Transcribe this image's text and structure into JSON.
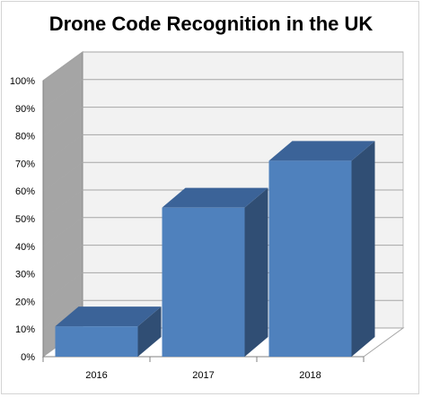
{
  "chart_data": {
    "type": "bar",
    "title": "Drone Code Recognition in the UK",
    "categories": [
      "2016",
      "2017",
      "2018"
    ],
    "values": [
      11,
      54,
      71
    ],
    "ylim": [
      0,
      100
    ],
    "yticks": [
      "0%",
      "10%",
      "20%",
      "30%",
      "40%",
      "50%",
      "60%",
      "70%",
      "80%",
      "90%",
      "100%"
    ],
    "xlabel": "",
    "ylabel": "",
    "grid": true,
    "legend": "none",
    "style": "3d-column",
    "colors": {
      "bar_front": "#4f81bd",
      "bar_side": "#304e74",
      "bar_top": "#3b6398",
      "left_wall": "#a5a5a5",
      "back_wall": "#f2f2f2",
      "grid": "#a6a6a6"
    }
  }
}
